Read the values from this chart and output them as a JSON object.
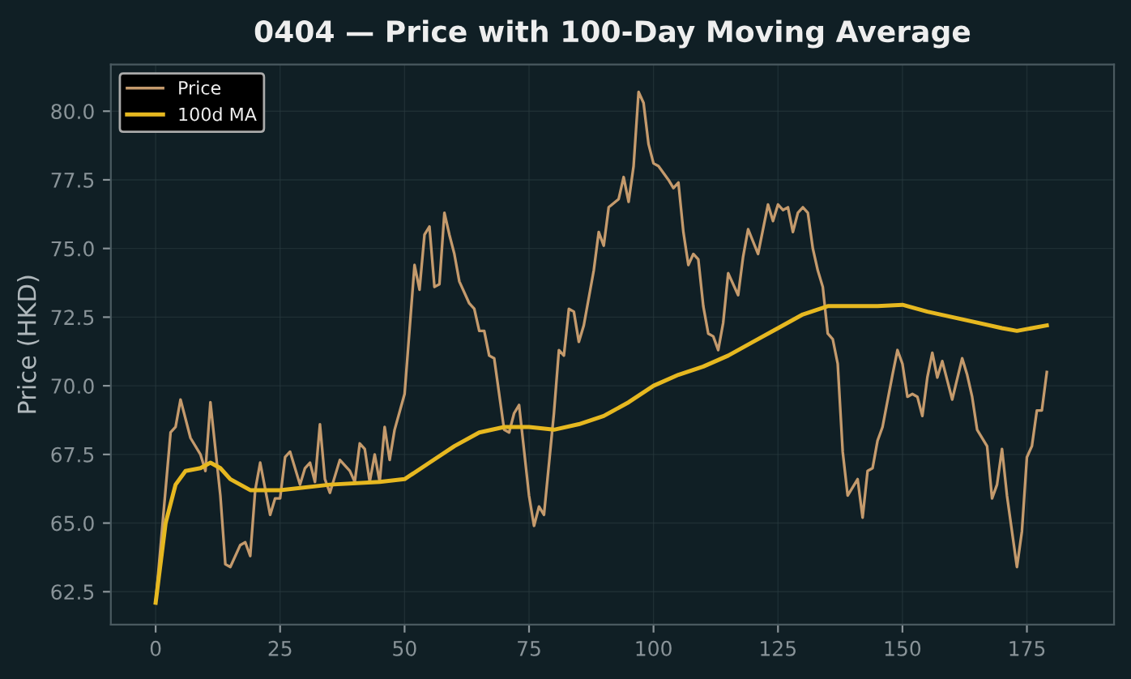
{
  "chart_data": {
    "type": "line",
    "title": "0404 — Price with 100-Day Moving Average",
    "ylabel": "Price (HKD)",
    "series": [
      {
        "name": "Price",
        "color": "#c49a6c",
        "x": [
          0,
          3,
          4,
          5,
          7,
          9,
          10,
          11,
          13,
          14,
          15,
          17,
          18,
          19,
          20,
          21,
          23,
          24,
          25,
          26,
          27,
          29,
          30,
          31,
          32,
          33,
          34,
          35,
          37,
          39,
          40,
          41,
          42,
          43,
          44,
          45,
          46,
          47,
          48,
          50,
          52,
          53,
          54,
          55,
          56,
          57,
          58,
          59,
          60,
          61,
          63,
          64,
          65,
          66,
          67,
          68,
          70,
          71,
          72,
          73,
          75,
          76,
          77,
          78,
          80,
          81,
          82,
          83,
          84,
          85,
          86,
          88,
          89,
          90,
          91,
          93,
          94,
          95,
          96,
          97,
          98,
          99,
          100,
          101,
          103,
          104,
          105,
          106,
          107,
          108,
          109,
          110,
          111,
          112,
          113,
          114,
          115,
          117,
          118,
          119,
          121,
          123,
          124,
          125,
          126,
          127,
          128,
          129,
          130,
          131,
          132,
          133,
          134,
          135,
          136,
          137,
          138,
          139,
          141,
          142,
          143,
          144,
          145,
          146,
          148,
          149,
          150,
          151,
          152,
          153,
          154,
          155,
          156,
          157,
          158,
          160,
          162,
          163,
          164,
          165,
          167,
          168,
          169,
          170,
          171,
          173,
          174,
          175,
          176,
          177,
          178,
          179
        ],
        "values": [
          62.1,
          68.3,
          68.5,
          69.5,
          68.1,
          67.5,
          66.9,
          69.4,
          66.0,
          63.5,
          63.4,
          64.2,
          64.3,
          63.8,
          66.2,
          67.2,
          65.3,
          65.9,
          65.9,
          67.4,
          67.6,
          66.4,
          67.0,
          67.2,
          66.5,
          68.6,
          66.6,
          66.1,
          67.3,
          66.9,
          66.5,
          67.9,
          67.7,
          66.5,
          67.5,
          66.5,
          68.5,
          67.3,
          68.4,
          69.7,
          74.4,
          73.5,
          75.5,
          75.8,
          73.6,
          73.7,
          76.3,
          75.5,
          74.8,
          73.8,
          73.0,
          72.8,
          72.0,
          72.0,
          71.1,
          71.0,
          68.4,
          68.3,
          69.0,
          69.3,
          66.0,
          64.9,
          65.6,
          65.3,
          69.0,
          71.3,
          71.1,
          72.8,
          72.7,
          71.6,
          72.2,
          74.2,
          75.6,
          75.1,
          76.5,
          76.8,
          77.6,
          76.7,
          78.0,
          80.7,
          80.3,
          78.8,
          78.1,
          78.0,
          77.5,
          77.2,
          77.4,
          75.6,
          74.4,
          74.8,
          74.6,
          72.9,
          71.9,
          71.8,
          71.3,
          72.3,
          74.1,
          73.3,
          74.7,
          75.7,
          74.8,
          76.6,
          76.0,
          76.6,
          76.4,
          76.5,
          75.6,
          76.3,
          76.5,
          76.3,
          75.0,
          74.2,
          73.6,
          71.9,
          71.7,
          70.8,
          67.6,
          66.0,
          66.6,
          65.2,
          66.9,
          67.0,
          68.0,
          68.5,
          70.4,
          71.3,
          70.8,
          69.6,
          69.7,
          69.6,
          68.9,
          70.3,
          71.2,
          70.3,
          70.9,
          69.5,
          71.0,
          70.4,
          69.6,
          68.4,
          67.8,
          65.9,
          66.4,
          67.7,
          66.0,
          63.4,
          64.7,
          67.4,
          67.8,
          69.1,
          69.1,
          70.5
        ]
      },
      {
        "name": "100d MA",
        "color": "#e6b820",
        "x": [
          0,
          2,
          4,
          6,
          9,
          11,
          13,
          15,
          19,
          25,
          35,
          45,
          50,
          55,
          60,
          65,
          70,
          75,
          80,
          85,
          90,
          95,
          100,
          105,
          110,
          115,
          120,
          125,
          130,
          135,
          140,
          145,
          150,
          155,
          160,
          165,
          170,
          173,
          176,
          179
        ],
        "values": [
          62.1,
          65.0,
          66.4,
          66.9,
          67.0,
          67.2,
          67.0,
          66.6,
          66.2,
          66.2,
          66.4,
          66.5,
          66.6,
          67.2,
          67.8,
          68.3,
          68.5,
          68.5,
          68.4,
          68.6,
          68.9,
          69.4,
          70.0,
          70.4,
          70.7,
          71.1,
          71.6,
          72.1,
          72.6,
          72.9,
          72.9,
          72.9,
          72.95,
          72.7,
          72.5,
          72.3,
          72.1,
          72.0,
          72.1,
          72.2
        ]
      }
    ],
    "xlim": [
      -9,
      192.5
    ],
    "ylim": [
      61.3,
      81.7
    ],
    "xticks": [
      0,
      25,
      50,
      75,
      100,
      125,
      150,
      175
    ],
    "yticks": [
      {
        "value": 62.5,
        "label": "62.5"
      },
      {
        "value": 65,
        "label": "65.0"
      },
      {
        "value": 67.5,
        "label": "67.5"
      },
      {
        "value": 70,
        "label": "70.0"
      },
      {
        "value": 72.5,
        "label": "72.5"
      },
      {
        "value": 75,
        "label": "75.0"
      },
      {
        "value": 77.5,
        "label": "77.5"
      },
      {
        "value": 80,
        "label": "80.0"
      }
    ],
    "grid": true,
    "legend": "top left"
  }
}
